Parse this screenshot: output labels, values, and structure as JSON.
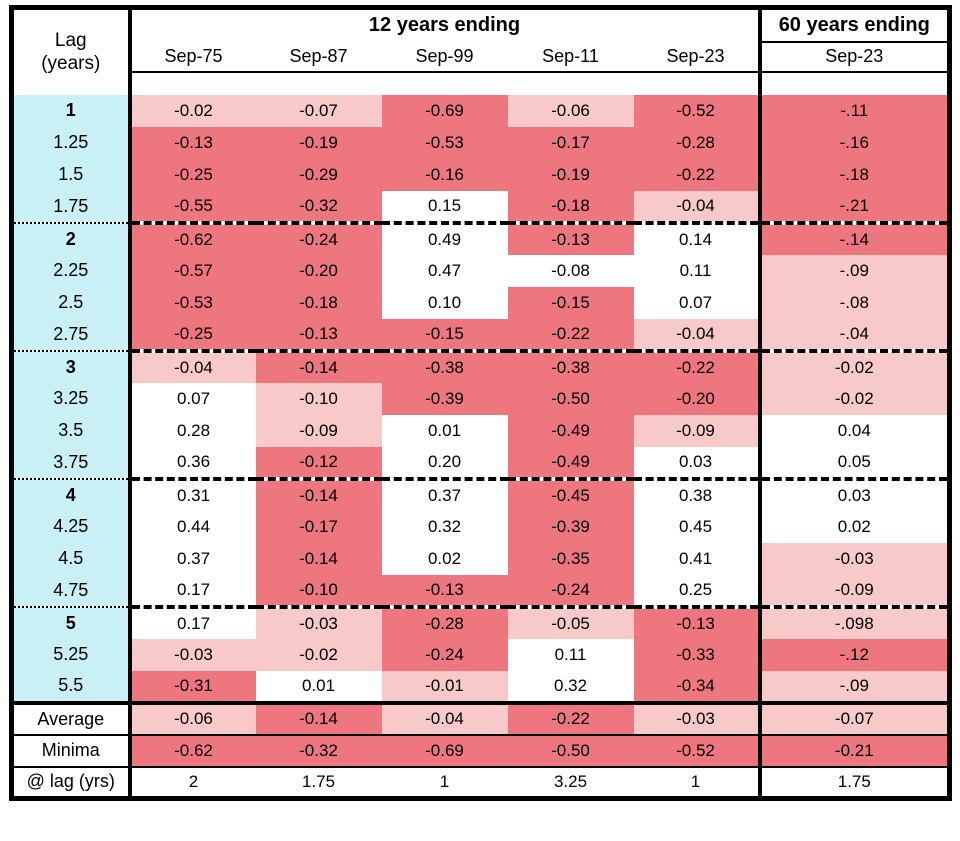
{
  "colors": {
    "strong_negative": "#ee767e",
    "mild_negative": "#f7c9c8",
    "neutral": "#ffffff",
    "lag_column": "#c9f0f5",
    "border": "#000000"
  },
  "header": {
    "lag_label_line1": "Lag",
    "lag_label_line2": "(years)",
    "group_12_label": "12 years ending",
    "group_60_label": "60 years ending",
    "columns_12": [
      "Sep-75",
      "Sep-87",
      "Sep-99",
      "Sep-11",
      "Sep-23"
    ],
    "column_60": "Sep-23"
  },
  "chart_data": {
    "type": "heatmap",
    "title": "Correlation by lag (years) for 12-year and 60-year periods",
    "columns": [
      "Sep-75",
      "Sep-87",
      "Sep-99",
      "Sep-11",
      "Sep-23",
      "Sep-23 (60 years ending)"
    ],
    "color_legend": {
      "dark": "strong negative correlation",
      "light": "mild negative correlation",
      "white": "positive or near-zero correlation"
    },
    "rows": [
      {
        "lag": "1",
        "bold": true,
        "break_before": false,
        "values": [
          "-0.02",
          "-0.07",
          "-0.69",
          "-0.06",
          "-0.52",
          "-.11"
        ],
        "colors": [
          "light",
          "light",
          "dark",
          "light",
          "dark",
          "dark"
        ]
      },
      {
        "lag": "1.25",
        "bold": false,
        "break_before": false,
        "values": [
          "-0.13",
          "-0.19",
          "-0.53",
          "-0.17",
          "-0.28",
          "-.16"
        ],
        "colors": [
          "dark",
          "dark",
          "dark",
          "dark",
          "dark",
          "dark"
        ]
      },
      {
        "lag": "1.5",
        "bold": false,
        "break_before": false,
        "values": [
          "-0.25",
          "-0.29",
          "-0.16",
          "-0.19",
          "-0.22",
          "-.18"
        ],
        "colors": [
          "dark",
          "dark",
          "dark",
          "dark",
          "dark",
          "dark"
        ]
      },
      {
        "lag": "1.75",
        "bold": false,
        "break_before": false,
        "values": [
          "-0.55",
          "-0.32",
          "0.15",
          "-0.18",
          "-0.04",
          "-.21"
        ],
        "colors": [
          "dark",
          "dark",
          "white",
          "dark",
          "light",
          "dark"
        ]
      },
      {
        "lag": "2",
        "bold": true,
        "break_before": true,
        "values": [
          "-0.62",
          "-0.24",
          "0.49",
          "-0.13",
          "0.14",
          "-.14"
        ],
        "colors": [
          "dark",
          "dark",
          "white",
          "dark",
          "white",
          "dark"
        ]
      },
      {
        "lag": "2.25",
        "bold": false,
        "break_before": false,
        "values": [
          "-0.57",
          "-0.20",
          "0.47",
          "-0.08",
          "0.11",
          "-.09"
        ],
        "colors": [
          "dark",
          "dark",
          "white",
          "white",
          "white",
          "light"
        ]
      },
      {
        "lag": "2.5",
        "bold": false,
        "break_before": false,
        "values": [
          "-0.53",
          "-0.18",
          "0.10",
          "-0.15",
          "0.07",
          "-.08"
        ],
        "colors": [
          "dark",
          "dark",
          "white",
          "dark",
          "white",
          "light"
        ]
      },
      {
        "lag": "2.75",
        "bold": false,
        "break_before": false,
        "values": [
          "-0.25",
          "-0.13",
          "-0.15",
          "-0.22",
          "-0.04",
          "-.04"
        ],
        "colors": [
          "dark",
          "dark",
          "dark",
          "dark",
          "light",
          "light"
        ]
      },
      {
        "lag": "3",
        "bold": true,
        "break_before": true,
        "values": [
          "-0.04",
          "-0.14",
          "-0.38",
          "-0.38",
          "-0.22",
          "-0.02"
        ],
        "colors": [
          "light",
          "dark",
          "dark",
          "dark",
          "dark",
          "light"
        ]
      },
      {
        "lag": "3.25",
        "bold": false,
        "break_before": false,
        "values": [
          "0.07",
          "-0.10",
          "-0.39",
          "-0.50",
          "-0.20",
          "-0.02"
        ],
        "colors": [
          "white",
          "light",
          "dark",
          "dark",
          "dark",
          "light"
        ]
      },
      {
        "lag": "3.5",
        "bold": false,
        "break_before": false,
        "values": [
          "0.28",
          "-0.09",
          "0.01",
          "-0.49",
          "-0.09",
          "0.04"
        ],
        "colors": [
          "white",
          "light",
          "white",
          "dark",
          "light",
          "white"
        ]
      },
      {
        "lag": "3.75",
        "bold": false,
        "break_before": false,
        "values": [
          "0.36",
          "-0.12",
          "0.20",
          "-0.49",
          "0.03",
          "0.05"
        ],
        "colors": [
          "white",
          "dark",
          "white",
          "dark",
          "white",
          "white"
        ]
      },
      {
        "lag": "4",
        "bold": true,
        "break_before": true,
        "values": [
          "0.31",
          "-0.14",
          "0.37",
          "-0.45",
          "0.38",
          "0.03"
        ],
        "colors": [
          "white",
          "dark",
          "white",
          "dark",
          "white",
          "white"
        ]
      },
      {
        "lag": "4.25",
        "bold": false,
        "break_before": false,
        "values": [
          "0.44",
          "-0.17",
          "0.32",
          "-0.39",
          "0.45",
          "0.02"
        ],
        "colors": [
          "white",
          "dark",
          "white",
          "dark",
          "white",
          "white"
        ]
      },
      {
        "lag": "4.5",
        "bold": false,
        "break_before": false,
        "values": [
          "0.37",
          "-0.14",
          "0.02",
          "-0.35",
          "0.41",
          "-0.03"
        ],
        "colors": [
          "white",
          "dark",
          "white",
          "dark",
          "white",
          "light"
        ]
      },
      {
        "lag": "4.75",
        "bold": false,
        "break_before": false,
        "values": [
          "0.17",
          "-0.10",
          "-0.13",
          "-0.24",
          "0.25",
          "-0.09"
        ],
        "colors": [
          "white",
          "dark",
          "dark",
          "dark",
          "white",
          "light"
        ]
      },
      {
        "lag": "5",
        "bold": true,
        "break_before": true,
        "values": [
          "0.17",
          "-0.03",
          "-0.28",
          "-0.05",
          "-0.13",
          "-.098"
        ],
        "colors": [
          "white",
          "light",
          "dark",
          "light",
          "dark",
          "light"
        ]
      },
      {
        "lag": "5.25",
        "bold": false,
        "break_before": false,
        "values": [
          "-0.03",
          "-0.02",
          "-0.24",
          "0.11",
          "-0.33",
          "-.12"
        ],
        "colors": [
          "light",
          "light",
          "dark",
          "white",
          "dark",
          "dark"
        ]
      },
      {
        "lag": "5.5",
        "bold": false,
        "break_before": false,
        "values": [
          "-0.31",
          "0.01",
          "-0.01",
          "0.32",
          "-0.34",
          "-.09"
        ],
        "colors": [
          "dark",
          "white",
          "light",
          "white",
          "dark",
          "light"
        ]
      }
    ],
    "footer": [
      {
        "label": "Average",
        "values": [
          "-0.06",
          "-0.14",
          "-0.04",
          "-0.22",
          "-0.03",
          "-0.07"
        ],
        "colors": [
          "light",
          "dark",
          "light",
          "dark",
          "light",
          "light"
        ]
      },
      {
        "label": "Minima",
        "values": [
          "-0.62",
          "-0.32",
          "-0.69",
          "-0.50",
          "-0.52",
          "-0.21"
        ],
        "colors": [
          "dark",
          "dark",
          "dark",
          "dark",
          "dark",
          "dark"
        ]
      },
      {
        "label": "@ lag (yrs)",
        "values": [
          "2",
          "1.75",
          "1",
          "3.25",
          "1",
          "1.75"
        ],
        "colors": [
          "white",
          "white",
          "white",
          "white",
          "white",
          "white"
        ]
      }
    ]
  }
}
